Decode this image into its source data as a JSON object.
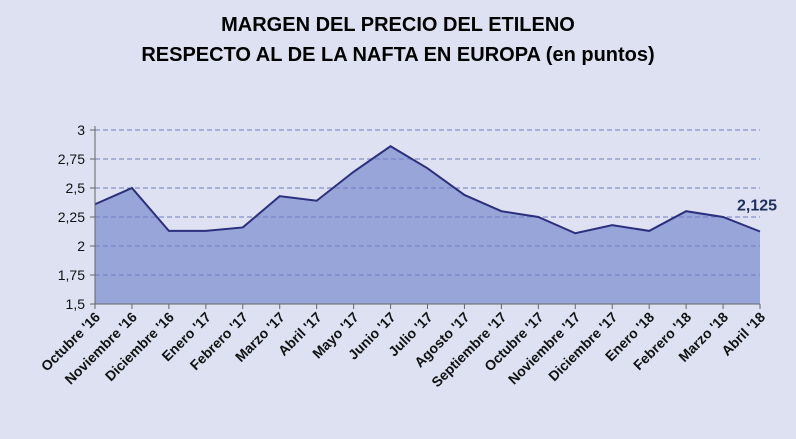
{
  "chart_data": {
    "type": "area",
    "title": "MARGEN DEL PRECIO DEL ETILENO",
    "subtitle": "RESPECTO  AL DE LA NAFTA EN EUROPA (en puntos)",
    "xlabel": "",
    "ylabel": "",
    "ylim": [
      1.5,
      3
    ],
    "yticks": [
      "1,5",
      "1,75",
      "2",
      "2,25",
      "2,5",
      "2,75",
      "3"
    ],
    "grid": true,
    "categories": [
      "Octubre '16",
      "Noviembre '16",
      "Diciembre '16",
      "Enero '17",
      "Febrero '17",
      "Marzo '17",
      "Abril '17",
      "Mayo '17",
      "Junio '17",
      "Julio '17",
      "Agosto '17",
      "Septiembre '17",
      "Octubre '17",
      "Noviembre '17",
      "Diciembre '17",
      "Enero '18",
      "Febrero '18",
      "Marzo '18",
      "Abril '18"
    ],
    "series": [
      {
        "values": [
          2.36,
          2.5,
          2.13,
          2.13,
          2.16,
          2.43,
          2.39,
          2.64,
          2.86,
          2.67,
          2.44,
          2.3,
          2.25,
          2.11,
          2.18,
          2.13,
          2.3,
          2.25,
          2.125
        ]
      }
    ],
    "data_label": "2,125",
    "colors": {
      "fill": "#98a5d8",
      "line": "#2c2f7c",
      "grid": "#6f7dc4",
      "background": "#dde1f2"
    }
  }
}
